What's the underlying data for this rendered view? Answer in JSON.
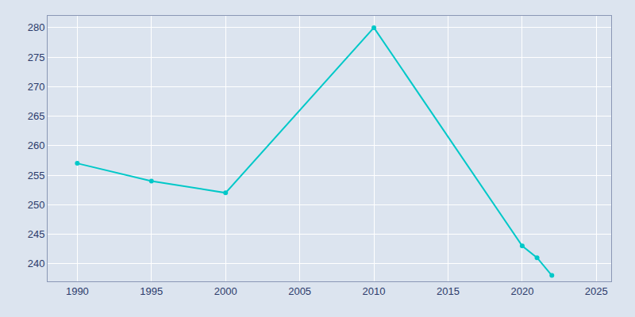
{
  "chart_data": {
    "type": "line",
    "x": [
      1990,
      1995,
      2000,
      2010,
      2020,
      2021,
      2022
    ],
    "values": [
      257,
      254,
      252,
      280,
      243,
      241,
      238
    ],
    "color": "#00c8c8",
    "marker": "circle",
    "xlim": [
      1988,
      2026
    ],
    "ylim": [
      237,
      282
    ],
    "xticks": [
      1990,
      1995,
      2000,
      2005,
      2010,
      2015,
      2020,
      2025
    ],
    "yticks": [
      240,
      245,
      250,
      255,
      260,
      265,
      270,
      275,
      280
    ],
    "grid": true
  }
}
